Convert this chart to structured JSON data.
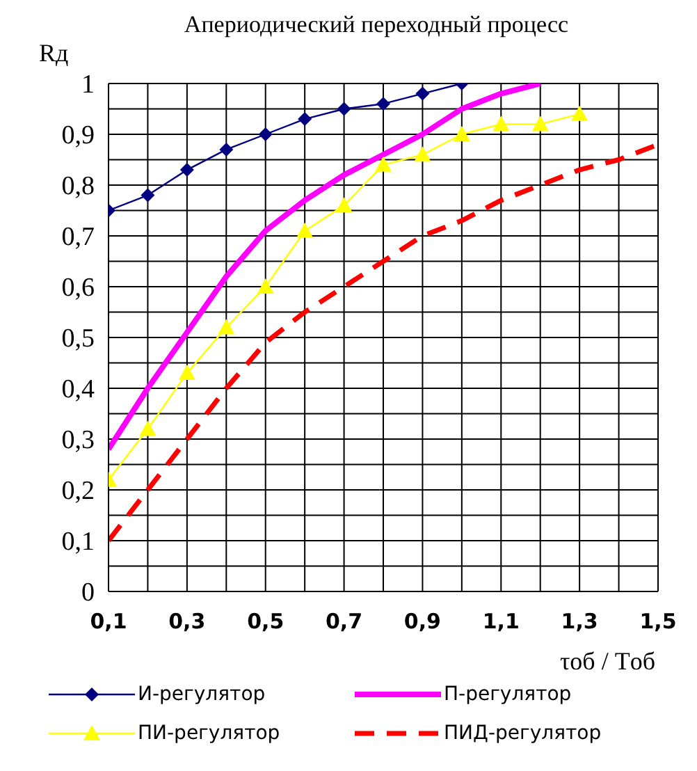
{
  "chart_data": {
    "type": "line",
    "title": "Апериодический переходный процесс",
    "ylabel": "Rд",
    "xlabel": "τоб / Tоб",
    "xlim": [
      0.1,
      1.5
    ],
    "xticks": [
      {
        "value": 0.1,
        "label": "0,1"
      },
      {
        "value": 0.2,
        "label": null
      },
      {
        "value": 0.3,
        "label": "0,3"
      },
      {
        "value": 0.4,
        "label": null
      },
      {
        "value": 0.5,
        "label": "0,5"
      },
      {
        "value": 0.6,
        "label": null
      },
      {
        "value": 0.7,
        "label": "0,7"
      },
      {
        "value": 0.8,
        "label": null
      },
      {
        "value": 0.9,
        "label": "0,9"
      },
      {
        "value": 1.0,
        "label": null
      },
      {
        "value": 1.1,
        "label": "1,1"
      },
      {
        "value": 1.2,
        "label": null
      },
      {
        "value": 1.3,
        "label": "1,3"
      },
      {
        "value": 1.4,
        "label": null
      },
      {
        "value": 1.5,
        "label": "1,5"
      }
    ],
    "ylim": [
      0,
      1
    ],
    "yticks": [
      0,
      {
        "value": 0.05,
        "label": null
      },
      {
        "value": 0.1,
        "label": "0,1"
      },
      {
        "value": 0.15,
        "label": null
      },
      {
        "value": 0.2,
        "label": "0,2"
      },
      {
        "value": 0.25,
        "label": null
      },
      {
        "value": 0.3,
        "label": "0,3"
      },
      {
        "value": 0.35,
        "label": null
      },
      {
        "value": 0.4,
        "label": "0,4"
      },
      {
        "value": 0.45,
        "label": null
      },
      {
        "value": 0.5,
        "label": "0,5"
      },
      {
        "value": 0.55,
        "label": null
      },
      {
        "value": 0.6,
        "label": "0,6"
      },
      {
        "value": 0.65,
        "label": null
      },
      {
        "value": 0.7,
        "label": "0,7"
      },
      {
        "value": 0.75,
        "label": null
      },
      {
        "value": 0.8,
        "label": "0,8"
      },
      {
        "value": 0.85,
        "label": null
      },
      {
        "value": 0.9,
        "label": "0,9"
      },
      {
        "value": 0.95,
        "label": null
      },
      1
    ],
    "grid": true,
    "legend": "bottom",
    "series": [
      {
        "name": "И-регулятор",
        "color": "#000080",
        "marker": "diamond",
        "line_style": "solid",
        "x": [
          0.1,
          0.2,
          0.3,
          0.4,
          0.5,
          0.6,
          0.7,
          0.8,
          0.9,
          1.0
        ],
        "values": [
          0.75,
          0.78,
          0.83,
          0.87,
          0.9,
          0.93,
          0.95,
          0.96,
          0.98,
          1.0
        ]
      },
      {
        "name": "П-регулятор",
        "color": "#ff00ff",
        "marker": "none",
        "line_style": "solid",
        "x": [
          0.1,
          0.2,
          0.3,
          0.4,
          0.5,
          0.6,
          0.7,
          0.8,
          0.9,
          1.0,
          1.1,
          1.2
        ],
        "values": [
          0.28,
          0.4,
          0.51,
          0.62,
          0.71,
          0.77,
          0.82,
          0.86,
          0.9,
          0.95,
          0.98,
          1.0
        ]
      },
      {
        "name": "ПИ-регулятор",
        "color": "#ffff00",
        "marker": "triangle",
        "line_style": "solid",
        "x": [
          0.1,
          0.2,
          0.3,
          0.4,
          0.5,
          0.6,
          0.7,
          0.8,
          0.9,
          1.0,
          1.1,
          1.2,
          1.3
        ],
        "values": [
          0.22,
          0.32,
          0.43,
          0.52,
          0.6,
          0.71,
          0.76,
          0.84,
          0.86,
          0.9,
          0.92,
          0.92,
          0.94
        ]
      },
      {
        "name": "ПИД-регулятор",
        "color": "#ff0000",
        "marker": "none",
        "line_style": "dashed",
        "x": [
          0.1,
          0.2,
          0.3,
          0.4,
          0.5,
          0.6,
          0.7,
          0.8,
          0.9,
          1.0,
          1.1,
          1.2,
          1.3,
          1.4,
          1.5
        ],
        "values": [
          0.1,
          0.2,
          0.3,
          0.4,
          0.49,
          0.55,
          0.6,
          0.65,
          0.7,
          0.73,
          0.77,
          0.8,
          0.83,
          0.85,
          0.88
        ]
      }
    ]
  }
}
